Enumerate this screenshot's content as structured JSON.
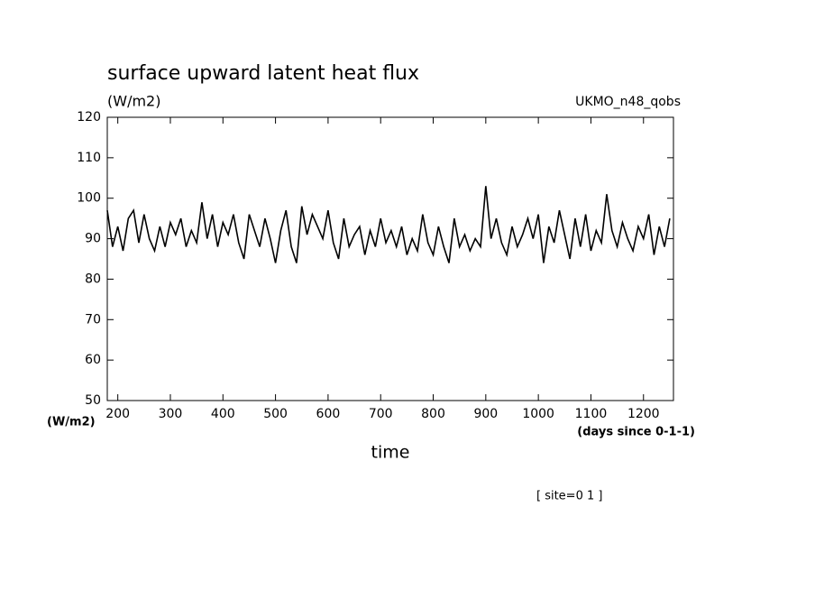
{
  "chart_data": {
    "type": "line",
    "title": "surface upward latent heat flux",
    "subtitle": "(W/m2)",
    "dataset_label": "UKMO_n48_qobs",
    "y_unit_label": "(W/m2)",
    "x_unit_label": "(days since 0-1-1)",
    "xlabel": "time",
    "annotation": "[ site=0 1 ]",
    "color": "#000000",
    "x": [
      180,
      190,
      200,
      210,
      220,
      230,
      240,
      250,
      260,
      270,
      280,
      290,
      300,
      310,
      320,
      330,
      340,
      350,
      360,
      370,
      380,
      390,
      400,
      410,
      420,
      430,
      440,
      450,
      460,
      470,
      480,
      490,
      500,
      510,
      520,
      530,
      540,
      550,
      560,
      570,
      580,
      590,
      600,
      610,
      620,
      630,
      640,
      650,
      660,
      670,
      680,
      690,
      700,
      710,
      720,
      730,
      740,
      750,
      760,
      770,
      780,
      790,
      800,
      810,
      820,
      830,
      840,
      850,
      860,
      870,
      880,
      890,
      900,
      910,
      920,
      930,
      940,
      950,
      960,
      970,
      980,
      990,
      1000,
      1010,
      1020,
      1030,
      1040,
      1050,
      1060,
      1070,
      1080,
      1090,
      1100,
      1110,
      1120,
      1130,
      1140,
      1150,
      1160,
      1170,
      1180,
      1190,
      1200,
      1210,
      1220,
      1230,
      1240,
      1250
    ],
    "values": [
      97,
      88,
      93,
      87,
      95,
      97,
      89,
      96,
      90,
      87,
      93,
      88,
      94,
      91,
      95,
      88,
      92,
      89,
      99,
      90,
      96,
      88,
      94,
      91,
      96,
      89,
      85,
      96,
      92,
      88,
      95,
      90,
      84,
      92,
      97,
      88,
      84,
      98,
      91,
      96,
      93,
      90,
      97,
      89,
      85,
      95,
      88,
      91,
      93,
      86,
      92,
      88,
      95,
      89,
      92,
      88,
      93,
      86,
      90,
      87,
      96,
      89,
      86,
      93,
      88,
      84,
      95,
      88,
      91,
      87,
      90,
      88,
      103,
      90,
      95,
      89,
      86,
      93,
      88,
      91,
      95,
      90,
      96,
      84,
      93,
      89,
      97,
      91,
      85,
      95,
      88,
      96,
      87,
      92,
      89,
      101,
      92,
      88,
      94,
      90,
      87,
      93,
      90,
      96,
      86,
      93,
      88,
      95
    ],
    "xlim": [
      180,
      1257
    ],
    "ylim": [
      50,
      120
    ],
    "xticks": [
      200,
      300,
      400,
      500,
      600,
      700,
      800,
      900,
      1000,
      1100,
      1200
    ],
    "yticks": [
      50,
      60,
      70,
      80,
      90,
      100,
      110,
      120
    ]
  }
}
